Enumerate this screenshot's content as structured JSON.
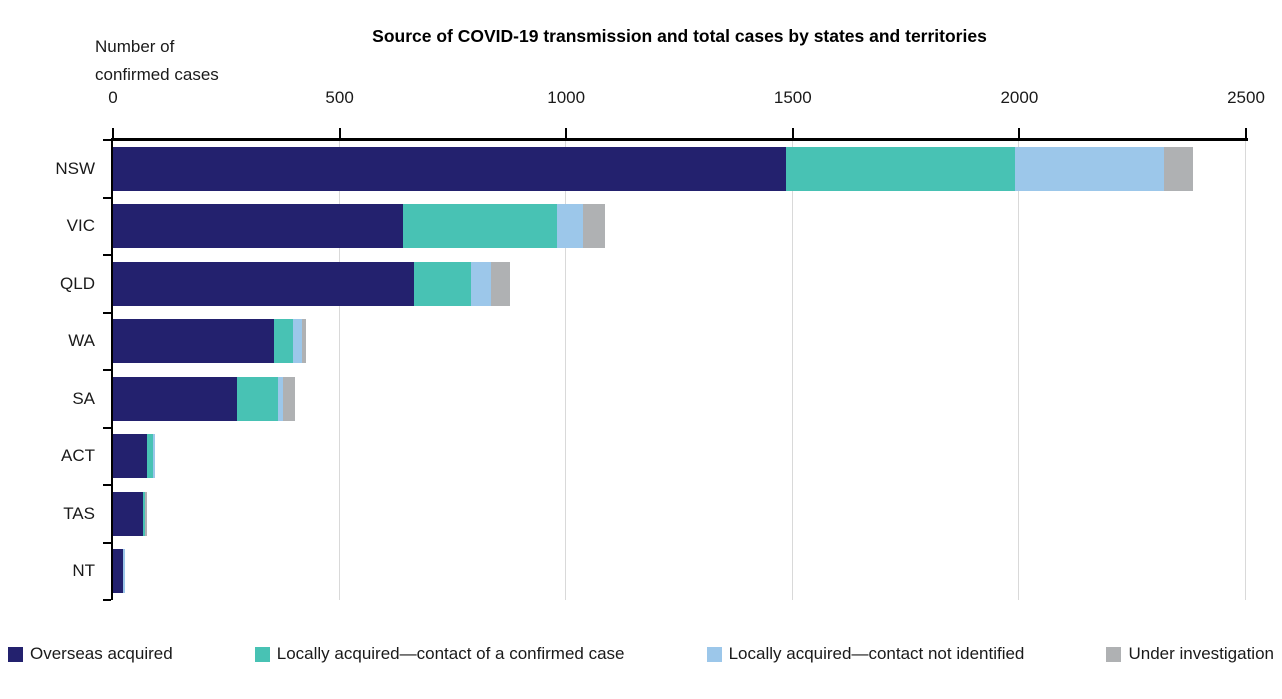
{
  "chart_data": {
    "type": "bar",
    "orientation": "horizontal-stacked",
    "title": "Source of COVID-19 transmission and total cases by states and territories",
    "axis_label_lines": [
      "Number of",
      "confirmed cases"
    ],
    "categories": [
      "NSW",
      "VIC",
      "QLD",
      "WA",
      "SA",
      "ACT",
      "TAS",
      "NT"
    ],
    "series": [
      {
        "name": "Overseas acquired",
        "color": "#23216e",
        "values": [
          1485,
          640,
          665,
          355,
          274,
          75,
          66,
          22
        ]
      },
      {
        "name": "Locally acquired—contact of a confirmed case",
        "color": "#48c2b4",
        "values": [
          505,
          340,
          125,
          42,
          90,
          13,
          5,
          0
        ]
      },
      {
        "name": "Locally acquired—contact not identified",
        "color": "#9cc7ea",
        "values": [
          330,
          57,
          45,
          20,
          11,
          4,
          0,
          5
        ]
      },
      {
        "name": "Under investigation",
        "color": "#afb1b3",
        "values": [
          62,
          49,
          40,
          9,
          27,
          0,
          5,
          0
        ]
      }
    ],
    "xlim": [
      0,
      2500
    ],
    "xticks": [
      0,
      500,
      1000,
      1500,
      2000,
      2500
    ],
    "grid": true,
    "legend_position": "bottom",
    "colors": {
      "axis": "#000000",
      "gridline": "#d9d9d9",
      "text": "#1a1a1a"
    }
  }
}
